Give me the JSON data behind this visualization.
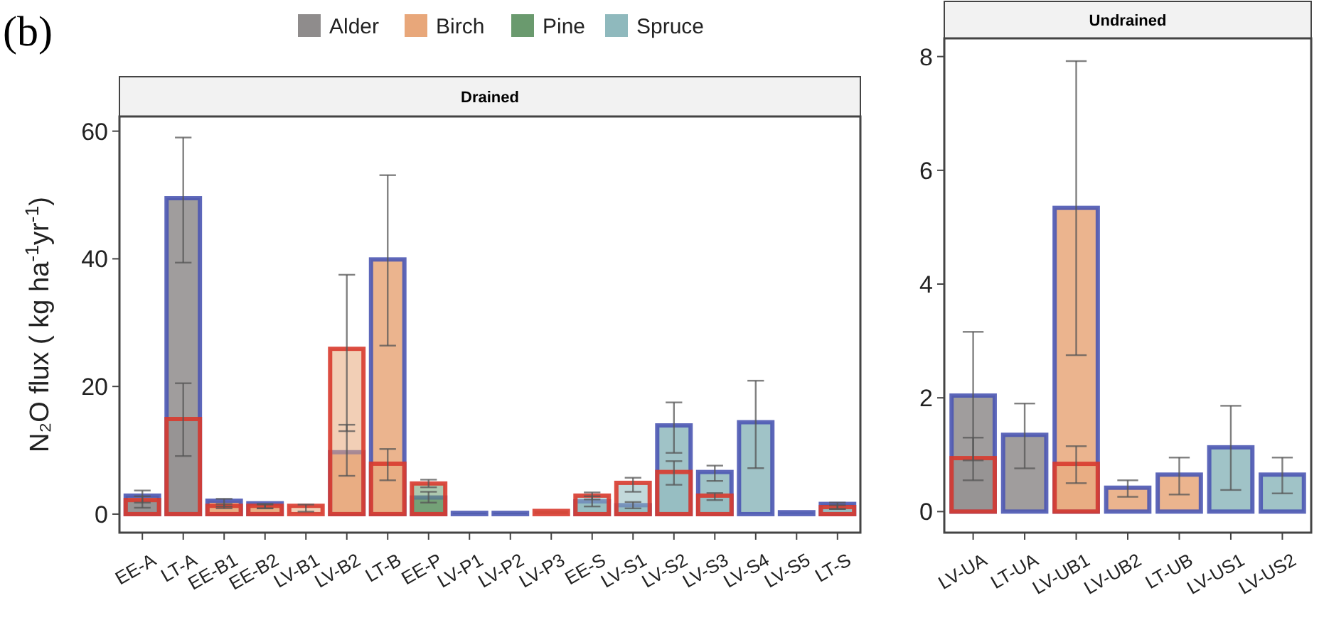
{
  "chart_data": [
    {
      "type": "bar",
      "title": "Drained",
      "ylabel": "N₂O flux ( kg ha$^{-1}$yr$^{-1}$)",
      "annotations": [
        "(b)"
      ],
      "legend": "top",
      "categories": [
        "EE-A",
        "LT-A",
        "EE-B1",
        "EE-B2",
        "LV-B1",
        "LV-B2",
        "LT-B",
        "EE-P",
        "LV-P1",
        "LV-P2",
        "LV-P3",
        "EE-S",
        "LV-S1",
        "LV-S2",
        "LV-S3",
        "LV-S4",
        "LV-S5",
        "LT-S"
      ],
      "ylim": [
        -2.9,
        62.3
      ],
      "yticks": [
        0,
        20,
        40,
        60
      ],
      "series": [
        {
          "name": "Alder",
          "color": "#8f8c8c",
          "values": [
            2.9,
            49.5,
            null,
            null,
            null,
            null,
            null,
            null,
            null,
            null,
            null,
            null,
            null,
            null,
            null,
            null,
            null,
            null
          ],
          "errors": [
            [
              1.8,
              3.7
            ],
            [
              39.4,
              59
            ],
            null,
            null,
            null,
            null,
            null,
            null,
            null,
            null,
            null,
            null,
            null,
            null,
            null,
            null,
            null,
            null
          ]
        },
        {
          "name": "Birch",
          "color": "#e8a77a",
          "values": [
            null,
            null,
            2.1,
            1.7,
            null,
            9.7,
            39.9,
            null,
            null,
            null,
            null,
            null,
            null,
            null,
            null,
            null,
            null,
            null
          ],
          "errors": [
            null,
            null,
            [
              1.2,
              2.4
            ],
            [
              0.9,
              1.6
            ],
            null,
            [
              6,
              14
            ],
            [
              26.4,
              53.1
            ],
            null,
            null,
            null,
            null,
            null,
            null,
            null,
            null,
            null,
            null,
            null
          ]
        },
        {
          "name": "Pine",
          "color": "#6a9a6e",
          "values": [
            null,
            null,
            null,
            null,
            null,
            null,
            null,
            2.6,
            0.2,
            0.2,
            null,
            null,
            null,
            null,
            null,
            null,
            null,
            null
          ],
          "errors": [
            null,
            null,
            null,
            null,
            null,
            null,
            null,
            [
              1.8,
              3.5
            ],
            null,
            null,
            null,
            null,
            null,
            null,
            null,
            null,
            null,
            null
          ]
        },
        {
          "name": "Spruce",
          "color": "#8fb9bd",
          "values": [
            null,
            null,
            null,
            null,
            null,
            null,
            null,
            null,
            null,
            null,
            null,
            2,
            1.4,
            13.9,
            6.6,
            14.4,
            0.3,
            1.6
          ],
          "errors": [
            null,
            null,
            null,
            null,
            null,
            null,
            null,
            null,
            null,
            null,
            null,
            [
              1.2,
              2.8
            ],
            [
              0.9,
              1.9
            ],
            [
              9.6,
              17.5
            ],
            [
              5.2,
              7.6
            ],
            [
              7.2,
              20.9
            ],
            null,
            [
              0.8,
              1.8
            ]
          ]
        },
        {
          "color": "#d83a2e",
          "colors": [
            "#8f8c8c",
            "#8f8c8c",
            "#e8a77a",
            "#e8a77a",
            "#e8a77a",
            "#e8a77a",
            "#e8a77a",
            "#6a9a6e",
            null,
            null,
            "#6a9a6e",
            "#8fb9bd",
            "#8fb9bd",
            "#8fb9bd",
            "#8fb9bd",
            null,
            null,
            "#8fb9bd"
          ],
          "values": [
            2.2,
            14.9,
            1.3,
            1.3,
            1.3,
            25.9,
            7.9,
            4.8,
            null,
            null,
            0.5,
            2.9,
            4.9,
            6.6,
            2.9,
            null,
            null,
            1.1
          ],
          "errors": [
            [
              1,
              2.8
            ],
            [
              9.1,
              20.5
            ],
            [
              0.9,
              1.6
            ],
            [
              0.9,
              1.5
            ],
            [
              0.4,
              1.5
            ],
            [
              13,
              37.5
            ],
            [
              5.3,
              10.2
            ],
            [
              4.2,
              5.4
            ],
            null,
            null,
            null,
            [
              2.3,
              3.4
            ],
            [
              3.5,
              5.7
            ],
            [
              4.6,
              8.3
            ],
            [
              2.2,
              3.3
            ],
            null,
            null,
            [
              0.8,
              1.4
            ]
          ]
        }
      ]
    },
    {
      "type": "bar",
      "title": "Undrained",
      "categories": [
        "LV-UA",
        "LT-UA",
        "LV-UB1",
        "LV-UB2",
        "LT-UB",
        "LV-US1",
        "LV-US2"
      ],
      "ylim": [
        -0.37,
        8.32
      ],
      "yticks": [
        0,
        2,
        4,
        6,
        8
      ],
      "series": [
        {
          "color": "#8f8c8c",
          "values": [
            2.04,
            1.35,
            null,
            null,
            null,
            null,
            null
          ],
          "errors": [
            [
              0.9,
              3.16
            ],
            [
              0.76,
              1.9
            ],
            null,
            null,
            null,
            null,
            null
          ]
        },
        {
          "color": "#e8a77a",
          "values": [
            null,
            null,
            5.34,
            0.42,
            0.65,
            null,
            null
          ],
          "errors": [
            null,
            null,
            [
              2.75,
              7.92
            ],
            [
              0.26,
              0.55
            ],
            [
              0.3,
              0.95
            ],
            null,
            null
          ]
        },
        {
          "color": "#8fb9bd",
          "values": [
            null,
            null,
            null,
            null,
            null,
            1.13,
            0.65
          ],
          "errors": [
            null,
            null,
            null,
            null,
            null,
            [
              0.38,
              1.86
            ],
            [
              0.32,
              0.95
            ]
          ]
        },
        {
          "color": "#d83a2e",
          "colors": [
            "#8f8c8c",
            null,
            "#e8a77a",
            null,
            null,
            null,
            null
          ],
          "values": [
            0.94,
            null,
            0.84,
            null,
            null,
            null,
            null
          ],
          "errors": [
            [
              0.55,
              1.3
            ],
            null,
            [
              0.5,
              1.15
            ],
            null,
            null,
            null,
            null
          ]
        }
      ]
    }
  ]
}
